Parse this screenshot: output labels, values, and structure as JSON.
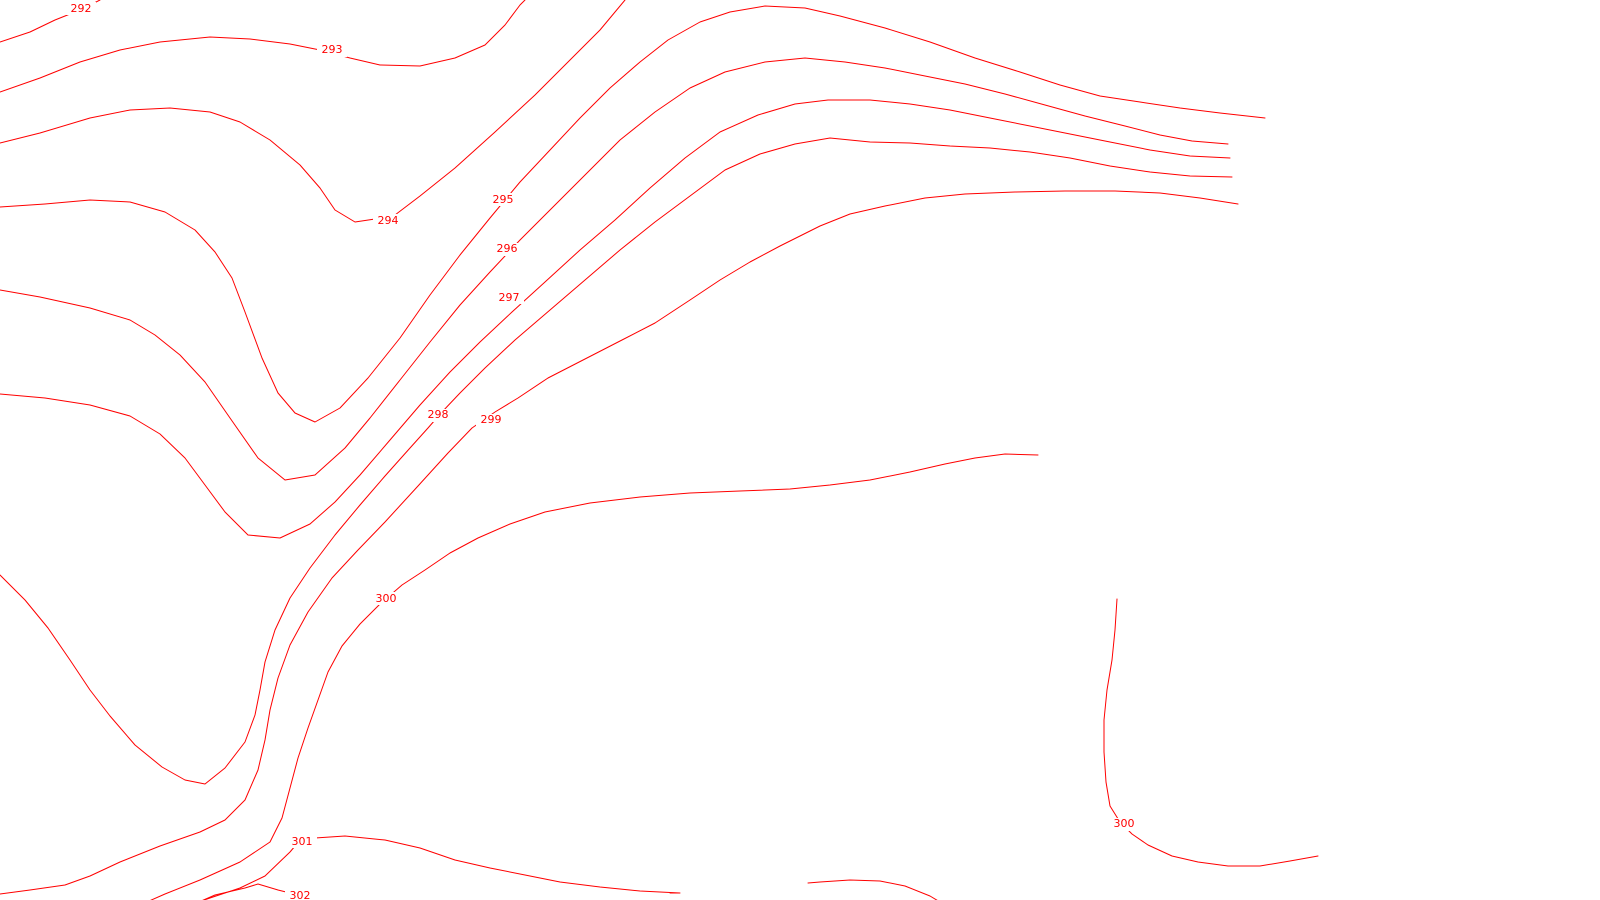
{
  "map": {
    "line_color": "#ff0000",
    "background": "#ffffff",
    "contour_labels": [
      "292",
      "293",
      "294",
      "295",
      "296",
      "297",
      "298",
      "299",
      "300",
      "300",
      "301",
      "302"
    ]
  }
}
